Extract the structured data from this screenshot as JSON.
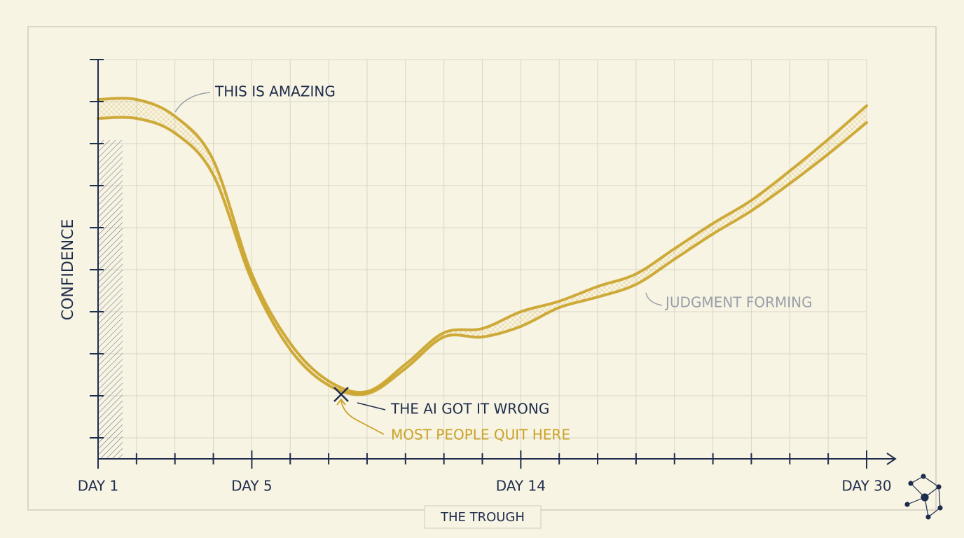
{
  "chart_data": {
    "type": "line",
    "title": null,
    "y_label": "CONFIDENCE",
    "categories": [
      "DAY 1",
      null,
      null,
      null,
      "DAY 5",
      null,
      null,
      null,
      null,
      null,
      null,
      "DAY 14",
      null,
      null,
      null,
      null,
      null,
      null,
      null,
      null,
      "DAY 30"
    ],
    "series": [
      {
        "color": "#c9a227",
        "values": [
          17.1,
          17.1,
          16.3,
          14.2,
          8.8,
          5.5,
          3.7,
          3.2,
          4.5,
          6.0,
          6.2,
          7.0,
          7.5,
          8.2,
          8.8,
          10.0,
          11.2,
          12.3,
          13.7,
          15.2,
          16.8
        ]
      },
      {
        "color": "#c9a227",
        "values": [
          16.2,
          16.2,
          15.5,
          13.5,
          8.5,
          5.2,
          3.5,
          3.1,
          4.3,
          5.8,
          5.8,
          6.3,
          7.2,
          7.7,
          8.3,
          9.5,
          10.7,
          11.8,
          13.1,
          14.5,
          16.0
        ]
      }
    ],
    "ylim": [
      0,
      20
    ],
    "yticks": [
      1,
      3,
      5,
      7,
      9,
      11,
      13,
      15,
      17,
      19
    ],
    "grid": true,
    "annotations": [
      {
        "text": "THIS IS AMAZING"
      },
      {
        "text": "THE AI GOT IT WRONG"
      },
      {
        "text": "MOST PEOPLE QUIT HERE"
      },
      {
        "text": "JUDGMENT FORMING"
      },
      {
        "text": "THE TROUGH"
      }
    ]
  }
}
